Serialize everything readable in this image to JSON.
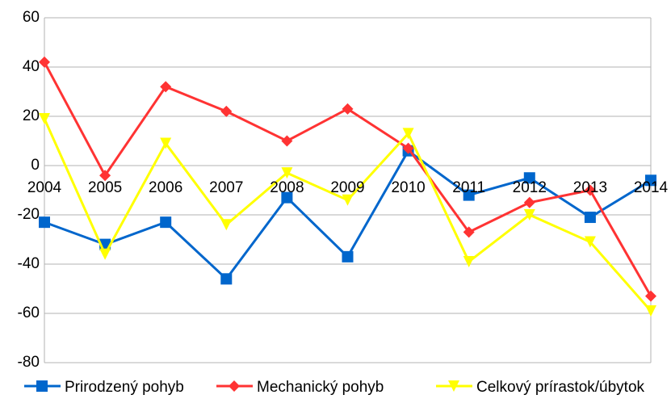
{
  "chart_data": {
    "type": "line",
    "categories": [
      "2004",
      "2005",
      "2006",
      "2007",
      "2008",
      "2009",
      "2010",
      "2011",
      "2012",
      "2013",
      "2014"
    ],
    "series": [
      {
        "name": "Prirodzený pohyb",
        "color": "#0066cc",
        "marker": "square",
        "values": [
          -23,
          -32,
          -23,
          -46,
          -13,
          -37,
          6,
          -12,
          -5,
          -21,
          -6
        ]
      },
      {
        "name": "Mechanický pohyb",
        "color": "#ff3333",
        "marker": "diamond",
        "values": [
          42,
          -4,
          32,
          22,
          10,
          23,
          7,
          -27,
          -15,
          -10,
          -53
        ]
      },
      {
        "name": "Celkový prírastok/úbytok",
        "color": "#ffff00",
        "marker": "triangle-down",
        "values": [
          19,
          -36,
          9,
          -24,
          -3,
          -14,
          13,
          -39,
          -20,
          -31,
          -59
        ]
      }
    ],
    "ylim": [
      -80,
      60
    ],
    "yticks": [
      -80,
      -60,
      -40,
      -20,
      0,
      20,
      40,
      60
    ],
    "grid": true,
    "legend": "bottom"
  }
}
